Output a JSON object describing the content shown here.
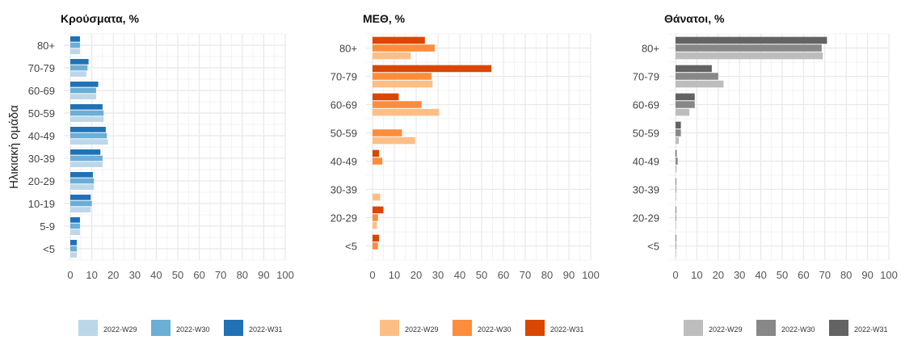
{
  "y_axis_title": "Ηλικιακή ομάδα",
  "legend_labels": [
    "2022-W29",
    "2022-W30",
    "2022-W31"
  ],
  "chart_data": [
    {
      "type": "bar",
      "orientation": "horizontal",
      "title": "Κρούσματα, %",
      "xlim": [
        0,
        100
      ],
      "x_ticks": [
        0,
        10,
        20,
        30,
        40,
        50,
        60,
        70,
        80,
        90,
        100
      ],
      "categories": [
        "80+",
        "70-79",
        "60-69",
        "50-59",
        "40-49",
        "30-39",
        "20-29",
        "10-19",
        "5-9",
        "<5"
      ],
      "colors": [
        "#bcd7e8",
        "#6baed6",
        "#2171b5"
      ],
      "series": [
        {
          "name": "2022-W29",
          "values": [
            4.5,
            7.5,
            12.0,
            15.5,
            17.5,
            15.0,
            11.0,
            9.5,
            4.5,
            3.0
          ]
        },
        {
          "name": "2022-W30",
          "values": [
            4.5,
            8.0,
            12.0,
            15.5,
            17.0,
            15.0,
            11.0,
            10.0,
            4.5,
            3.0
          ]
        },
        {
          "name": "2022-W31",
          "values": [
            4.5,
            8.5,
            13.0,
            15.0,
            16.5,
            14.0,
            10.5,
            9.5,
            4.5,
            3.0
          ]
        }
      ]
    },
    {
      "type": "bar",
      "orientation": "horizontal",
      "title": "ΜΕΘ, %",
      "xlim": [
        0,
        100
      ],
      "x_ticks": [
        0,
        10,
        20,
        30,
        40,
        50,
        60,
        70,
        80,
        90,
        100
      ],
      "categories": [
        "80+",
        "70-79",
        "60-69",
        "50-59",
        "40-49",
        "30-39",
        "20-29",
        "<5"
      ],
      "colors": [
        "#fdbe85",
        "#fd8d3c",
        "#d94701"
      ],
      "series": [
        {
          "name": "2022-W29",
          "values": [
            17.5,
            27.5,
            30.5,
            19.5,
            0,
            3.5,
            2.0,
            0
          ]
        },
        {
          "name": "2022-W30",
          "values": [
            28.5,
            27.0,
            22.5,
            13.5,
            4.5,
            0,
            2.5,
            2.5
          ]
        },
        {
          "name": "2022-W31",
          "values": [
            24.0,
            54.5,
            12.0,
            0,
            3.0,
            0,
            5.0,
            3.0
          ]
        }
      ]
    },
    {
      "type": "bar",
      "orientation": "horizontal",
      "title": "Θάνατοι, %",
      "xlim": [
        0,
        100
      ],
      "x_ticks": [
        0,
        10,
        20,
        30,
        40,
        50,
        60,
        70,
        80,
        90,
        100
      ],
      "categories": [
        "80+",
        "70-79",
        "60-69",
        "50-59",
        "40-49",
        "30-39",
        "20-29",
        "<5"
      ],
      "colors": [
        "#bdbdbd",
        "#888888",
        "#636363"
      ],
      "series": [
        {
          "name": "2022-W29",
          "values": [
            69.0,
            22.5,
            6.5,
            1.5,
            0.5,
            0.3,
            0.3,
            0.3
          ]
        },
        {
          "name": "2022-W30",
          "values": [
            68.5,
            20.0,
            9.0,
            2.5,
            1.0,
            0.3,
            0.3,
            0.3
          ]
        },
        {
          "name": "2022-W31",
          "values": [
            71.0,
            17.0,
            9.0,
            2.5,
            0.5,
            0.3,
            0.3,
            0.3
          ]
        }
      ]
    }
  ]
}
